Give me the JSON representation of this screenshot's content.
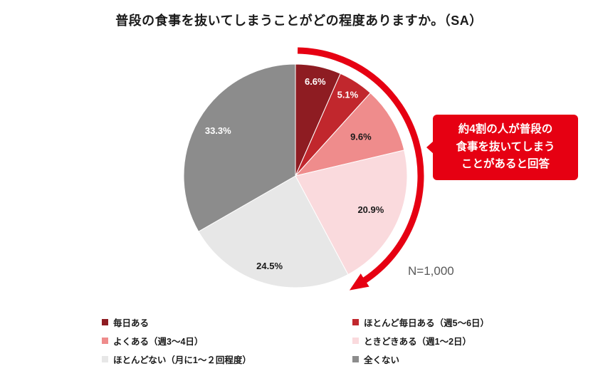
{
  "chart_data": {
    "type": "pie",
    "title": "普段の食事を抜いてしまうことがどの程度ありますか。（SA）",
    "n_label": "N=1,000",
    "start_angle_deg": 0,
    "direction": "clockwise",
    "slices": [
      {
        "label": "毎日ある",
        "value": 6.6,
        "percent_label": "6.6%",
        "color": "#8e1c22",
        "text_color": "#ffffff"
      },
      {
        "label": "ほとんど毎日ある（週5〜6日）",
        "value": 5.1,
        "percent_label": "5.1%",
        "color": "#c1272d",
        "text_color": "#ffffff"
      },
      {
        "label": "よくある（週3〜4日）",
        "value": 9.6,
        "percent_label": "9.6%",
        "color": "#ef8c8c",
        "text_color": "#1a1a1a"
      },
      {
        "label": "ときどきある（週1〜2日）",
        "value": 20.9,
        "percent_label": "20.9%",
        "color": "#fadadd",
        "text_color": "#1a1a1a"
      },
      {
        "label": "ほとんどない（月に1〜２回程度）",
        "value": 24.5,
        "percent_label": "24.5%",
        "color": "#e7e7e7",
        "text_color": "#1a1a1a"
      },
      {
        "label": "全くない",
        "value": 33.3,
        "percent_label": "33.3%",
        "color": "#8c8c8c",
        "text_color": "#ffffff"
      }
    ],
    "label_radius": [
      0.86,
      0.86,
      0.68,
      0.74,
      0.84,
      0.8
    ],
    "annotation": {
      "text_lines": [
        "約4割の人が普段の",
        "食事を抜いてしまう",
        "ことがあると回答"
      ],
      "color": "#e60012",
      "text_color": "#ffffff",
      "arc_span_percent": 42.2
    },
    "legend_position": "bottom",
    "legend_columns": 2,
    "grid": false
  }
}
